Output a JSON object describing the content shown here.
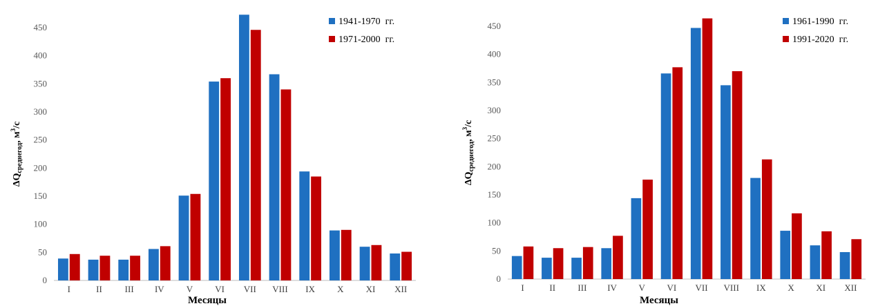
{
  "chart_data": [
    {
      "type": "bar",
      "title": "",
      "xlabel": "Месяцы",
      "ylabel": {
        "prefix": "ΔQ",
        "subscript": "среднегод",
        "suffix": ", м",
        "superscript": "3",
        "tail": "/с"
      },
      "categories": [
        "I",
        "II",
        "III",
        "IV",
        "V",
        "VI",
        "VII",
        "VIII",
        "IX",
        "X",
        "XI",
        "XII"
      ],
      "ylim": [
        0,
        450
      ],
      "yticks": [
        "0",
        "50",
        "100",
        "150",
        "200",
        "250",
        "300",
        "350",
        "400",
        "450"
      ],
      "grid": false,
      "legend_position": "top-right",
      "series": [
        {
          "name": "1941-1970  гг.",
          "color": "#1f70c1",
          "values": [
            39,
            37,
            37,
            56,
            151,
            354,
            473,
            367,
            194,
            89,
            60,
            48
          ]
        },
        {
          "name": "1971-2000  гг.",
          "color": "#c00000",
          "values": [
            47,
            44,
            44,
            61,
            154,
            360,
            446,
            340,
            185,
            90,
            63,
            51
          ]
        }
      ]
    },
    {
      "type": "bar",
      "title": "",
      "xlabel": "Месяцы",
      "ylabel": {
        "prefix": "ΔQ",
        "subscript": "среднегод",
        "suffix": ", м",
        "superscript": "3",
        "tail": "/с"
      },
      "categories": [
        "I",
        "II",
        "III",
        "IV",
        "V",
        "VI",
        "VII",
        "VIII",
        "IX",
        "X",
        "XI",
        "XII"
      ],
      "ylim": [
        0,
        450
      ],
      "yticks": [
        "0",
        "50",
        "100",
        "150",
        "200",
        "250",
        "300",
        "350",
        "400",
        "450"
      ],
      "grid": false,
      "legend_position": "top-right",
      "series": [
        {
          "name": "1961-1990  гг.",
          "color": "#1f70c1",
          "values": [
            41,
            38,
            38,
            55,
            144,
            366,
            447,
            345,
            180,
            86,
            60,
            48
          ]
        },
        {
          "name": "1991-2020  гг.",
          "color": "#c00000",
          "values": [
            58,
            55,
            57,
            77,
            177,
            377,
            464,
            370,
            213,
            117,
            85,
            71
          ]
        }
      ]
    }
  ]
}
